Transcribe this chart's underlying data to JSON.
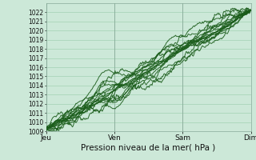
{
  "xlabel": "Pression niveau de la mer( hPa )",
  "xtick_labels": [
    "Jeu",
    "Ven",
    "Sam",
    "Dim"
  ],
  "xtick_positions": [
    0,
    96,
    192,
    288
  ],
  "ylim": [
    1009,
    1023
  ],
  "yticks": [
    1009,
    1010,
    1011,
    1012,
    1013,
    1014,
    1015,
    1016,
    1017,
    1018,
    1019,
    1020,
    1021,
    1022
  ],
  "bg_color": "#cce8d8",
  "grid_color": "#99ccaa",
  "line_color": "#1a5c1a",
  "total_points": 289,
  "figsize": [
    3.2,
    2.0
  ],
  "dpi": 100
}
